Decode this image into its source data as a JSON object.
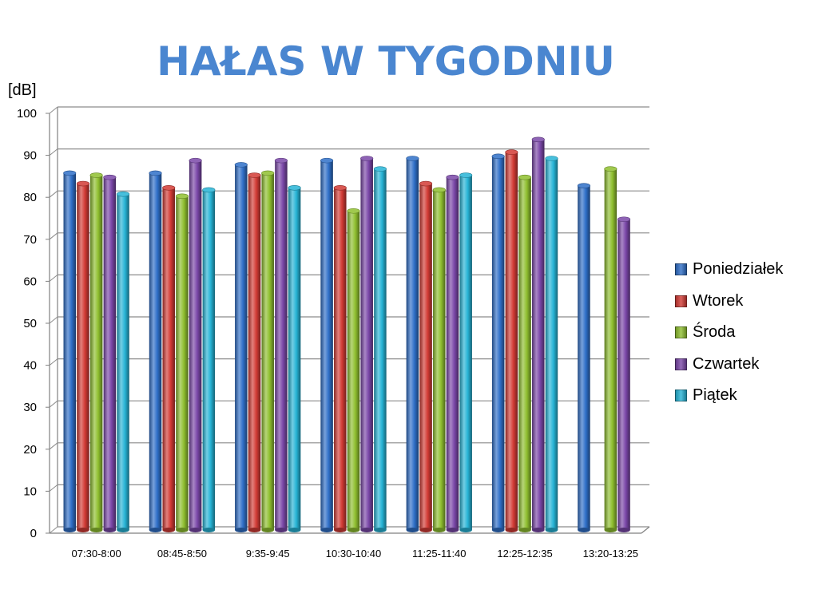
{
  "title": "HAŁAS W TYGODNIU",
  "chart_data": {
    "type": "bar",
    "title": "HAŁAS W TYGODNIU",
    "ylabel": "[dB]",
    "xlabel": "",
    "ylim": [
      0,
      100
    ],
    "yticks": [
      0,
      10,
      20,
      30,
      40,
      50,
      60,
      70,
      80,
      90,
      100
    ],
    "grid": true,
    "legend_position": "right",
    "categories": [
      "07:30-8:00",
      "08:45-8:50",
      "9:35-9:45",
      "10:30-10:40",
      "11:25-11:40",
      "12:25-12:35",
      "13:20-13:25"
    ],
    "series": [
      {
        "name": "Poniedziałek",
        "color": "#2f6fc8",
        "values": [
          85,
          85,
          87,
          88,
          88.5,
          89,
          82
        ]
      },
      {
        "name": "Wtorek",
        "color": "#d23b35",
        "values": [
          82.5,
          81.5,
          84.5,
          81.5,
          82.5,
          90,
          null
        ]
      },
      {
        "name": "Środa",
        "color": "#8fbf2f",
        "values": [
          84.5,
          79.5,
          85,
          76,
          81,
          84,
          86
        ]
      },
      {
        "name": "Czwartek",
        "color": "#7a47a8",
        "values": [
          84,
          88,
          88,
          88.5,
          84,
          93,
          74
        ]
      },
      {
        "name": "Piątek",
        "color": "#27b4d6",
        "values": [
          80,
          81,
          81.5,
          86,
          84.5,
          88.5,
          null
        ]
      }
    ]
  }
}
